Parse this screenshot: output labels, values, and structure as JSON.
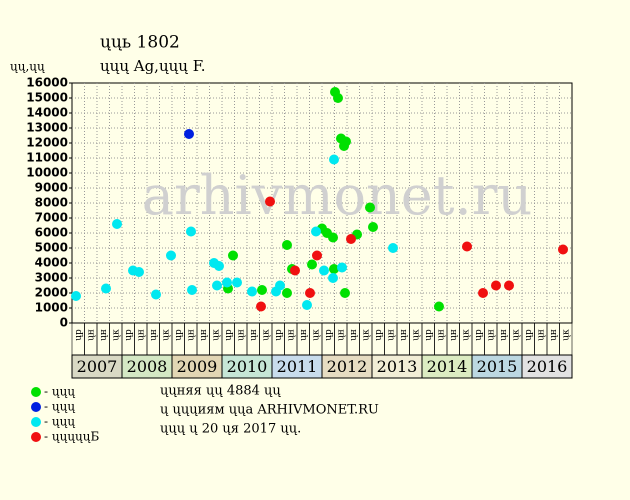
{
  "chart_data": {
    "type": "scatter",
    "title": "ųųь 1802",
    "subtitle": "ųųų Ag,ųųų F.",
    "y_label": "ųų,ųų",
    "watermark": "arhivmonet.ru",
    "ylim": [
      0,
      16000
    ],
    "yticks": [
      0,
      1000,
      2000,
      3000,
      4000,
      5000,
      6000,
      7000,
      8000,
      9000,
      10000,
      11000,
      12000,
      13000,
      14000,
      15000,
      16000
    ],
    "xlim": [
      2007,
      2017
    ],
    "years": [
      "2007",
      "2008",
      "2009",
      "2010",
      "2011",
      "2012",
      "2013",
      "2014",
      "2015",
      "2016"
    ],
    "year_colors": [
      "#d9d9c4",
      "#d4e8c4",
      "#e2d6b4",
      "#c6e6d6",
      "#c8dcec",
      "#e6dcc2",
      "#f2eed6",
      "#dcecc2",
      "#bcd8e2",
      "#e2e2e2"
    ],
    "sub_labels": [
      "ųр",
      "ųн",
      "ųн",
      "ųк"
    ],
    "grid": true,
    "series": [
      {
        "name": "- ųųų",
        "color": "#00e000",
        "x": [
          2010.12,
          2010.22,
          2010.8,
          2011.3,
          2011.3,
          2011.4,
          2011.8,
          2012.0,
          2012.1,
          2012.22,
          2012.24,
          2012.26,
          2012.32,
          2012.38,
          2012.48,
          2012.44,
          2012.46,
          2012.7,
          2012.96,
          2013.02,
          2014.34
        ],
        "values": [
          2300,
          4500,
          2200,
          5200,
          2000,
          3600,
          3900,
          6300,
          6000,
          5700,
          3600,
          15400,
          15000,
          12300,
          12100,
          11800,
          2000,
          5900,
          7700,
          6400,
          1100
        ]
      },
      {
        "name": "- ųųų",
        "color": "#0020e0",
        "x": [
          2009.34
        ],
        "values": [
          12600
        ]
      },
      {
        "name": "- ųųų",
        "color": "#00e8f0",
        "x": [
          2007.08,
          2007.68,
          2007.9,
          2008.22,
          2008.34,
          2008.68,
          2008.98,
          2009.38,
          2009.4,
          2009.84,
          2009.94,
          2009.9,
          2010.1,
          2010.3,
          2010.6,
          2011.08,
          2011.16,
          2011.7,
          2011.88,
          2012.04,
          2012.22,
          2012.24,
          2012.4,
          2013.42
        ],
        "values": [
          1800,
          2300,
          6600,
          3500,
          3400,
          1900,
          4500,
          6100,
          2200,
          4000,
          3800,
          2500,
          2700,
          2700,
          2100,
          2100,
          2500,
          1200,
          6100,
          3500,
          3000,
          10900,
          3700,
          5000
        ]
      },
      {
        "name": "- ųųųųųБ",
        "color": "#f01010",
        "x": [
          2010.96,
          2010.78,
          2011.46,
          2011.76,
          2011.9,
          2012.58,
          2014.9,
          2015.22,
          2015.48,
          2015.74,
          2016.82
        ],
        "values": [
          8100,
          1100,
          3500,
          2000,
          4500,
          5600,
          5100,
          2000,
          2500,
          2500,
          4900
        ]
      }
    ],
    "notes": [
      "ųųняя ųų 4884 ųų",
      "ų ųųųиям ųųа ARHIVMONET.RU",
      "ųųų ų 20 ųя 2017 ųų."
    ]
  }
}
